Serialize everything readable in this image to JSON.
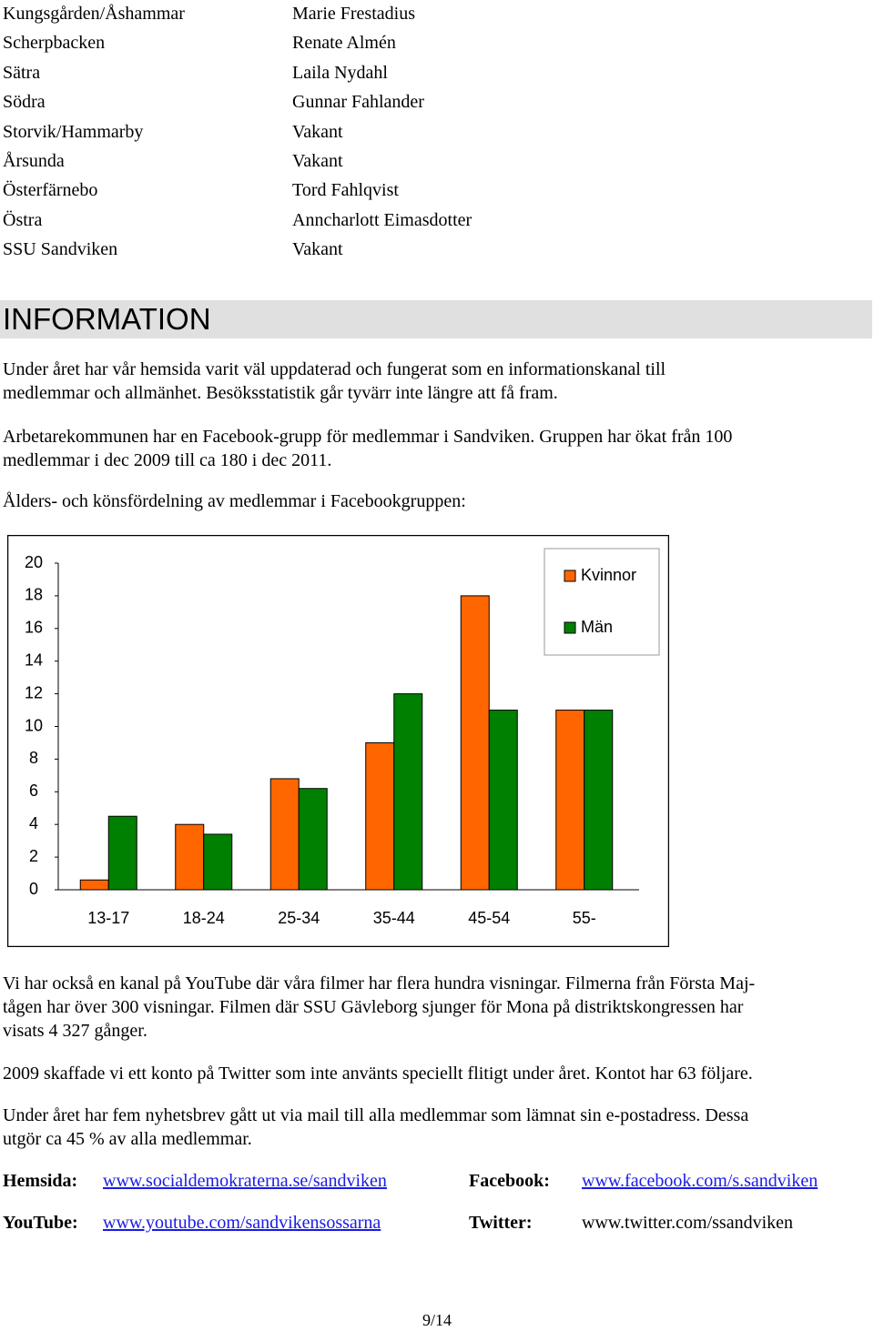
{
  "roster": [
    [
      "Kungsgården/Åshammar",
      "Marie Frestadius"
    ],
    [
      "Scherpbacken",
      "Renate Almén"
    ],
    [
      "Sätra",
      "Laila Nydahl"
    ],
    [
      "Södra",
      "Gunnar Fahlander"
    ],
    [
      "Storvik/Hammarby",
      "Vakant"
    ],
    [
      "Årsunda",
      "Vakant"
    ],
    [
      "Österfärnebo",
      "Tord Fahlqvist"
    ],
    [
      "Östra",
      "Anncharlott Eimasdotter"
    ],
    [
      "SSU Sandviken",
      "Vakant"
    ]
  ],
  "heading": "INFORMATION",
  "paragraphs_before": [
    [
      "Under året har vår hemsida varit väl uppdaterad och fungerat som en informationskanal till",
      "medlemmar och allmänhet. Besöksstatistik går tyvärr inte längre att få fram."
    ],
    [
      "Arbetarekommunen har en Facebook-grupp för medlemmar i Sandviken. Gruppen har ökat från 100",
      "medlemmar i dec 2009 till ca 180 i dec 2011."
    ],
    [
      "Ålders- och könsfördelning av medlemmar i Facebookgruppen:"
    ]
  ],
  "chart_data": {
    "type": "bar",
    "categories": [
      "13-17",
      "18-24",
      "25-34",
      "35-44",
      "45-54",
      "55-"
    ],
    "series": [
      {
        "name": "Kvinnor",
        "color": "#ff6600",
        "values": [
          0.6,
          4,
          6.8,
          9,
          18,
          11
        ]
      },
      {
        "name": "Män",
        "color": "#008000",
        "values": [
          4.5,
          3.4,
          6.2,
          12,
          11,
          11
        ]
      }
    ],
    "ylim": [
      0,
      20
    ],
    "yticks": [
      0,
      2,
      4,
      6,
      8,
      10,
      12,
      14,
      16,
      18,
      20
    ],
    "grid": false,
    "legend": "top-right"
  },
  "paragraphs_after": [
    [
      "Vi har också en kanal på YouTube där våra filmer har flera hundra visningar. Filmerna från Första Maj-",
      "tågen har över 300 visningar. Filmen där SSU Gävleborg sjunger för Mona på distriktskongressen har",
      "visats 4 327 gånger."
    ],
    [
      "2009 skaffade vi ett konto på Twitter som inte använts speciellt flitigt under året. Kontot har 63 följare."
    ],
    [
      "Under året har fem nyhetsbrev gått ut via mail till alla medlemmar som lämnat sin e-postadress. Dessa",
      "utgör ca 45 % av alla medlemmar."
    ]
  ],
  "links": [
    [
      {
        "label": "Hemsida:",
        "url": "www.socialdemokraterna.se/sandviken"
      },
      {
        "label": "Facebook:",
        "url": "www.facebook.com/s.sandviken"
      }
    ],
    [
      {
        "label": "YouTube:",
        "url": "www.youtube.com/sandvikensossarna"
      },
      {
        "label": "Twitter:",
        "url": "www.twitter.com/ssandviken"
      }
    ]
  ],
  "page_number": "9/14"
}
